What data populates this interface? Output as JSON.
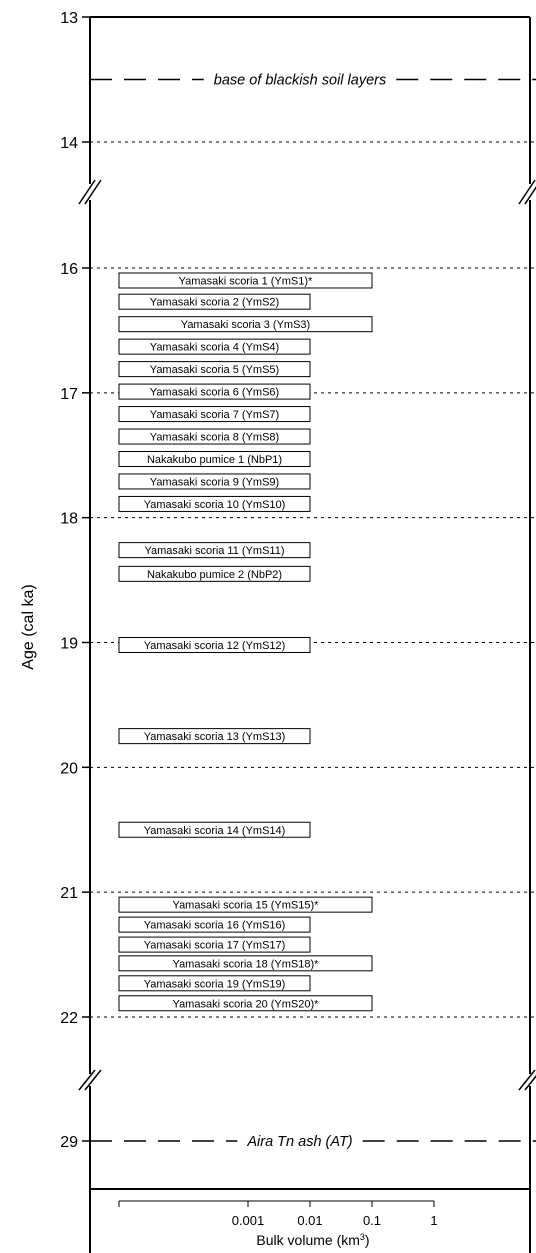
{
  "chart_data": {
    "type": "bar",
    "orientation": "horizontal-range",
    "ylabel": "Age (cal ka)",
    "xlabel_text": "Bulk volume (km",
    "xlabel_sup": "3",
    "xlabel_close": ")",
    "x_scale": "log",
    "x_ticks": [
      "0.001",
      "0.01",
      "0.1",
      "1"
    ],
    "y_ticks": [
      {
        "value": 13,
        "label": "13"
      },
      {
        "value": 14,
        "label": "14"
      },
      {
        "value": 16,
        "label": "16"
      },
      {
        "value": 17,
        "label": "17"
      },
      {
        "value": 18,
        "label": "18"
      },
      {
        "value": 19,
        "label": "19"
      },
      {
        "value": 20,
        "label": "20"
      },
      {
        "value": 21,
        "label": "21"
      },
      {
        "value": 22,
        "label": "22"
      },
      {
        "value": 29,
        "label": "29"
      }
    ],
    "axis_breaks": [
      [
        14,
        16
      ],
      [
        22,
        29
      ]
    ],
    "reference_lines": [
      {
        "age": 13.5,
        "label": "base of blackish soil layers",
        "style": "long-dash"
      },
      {
        "age": 29,
        "label": "Aira Tn ash (AT)",
        "style": "long-dash"
      }
    ],
    "gridlines": "dotted at integer ages",
    "series": [
      {
        "label": "Yamasaki scoria 1 (YmS1)*",
        "age": 16.1,
        "volume": 0.1
      },
      {
        "label": "Yamasaki scoria 2 (YmS2)",
        "age": 16.27,
        "volume": 0.01
      },
      {
        "label": "Yamasaki scoria 3 (YmS3)",
        "age": 16.45,
        "volume": 0.1
      },
      {
        "label": "Yamasaki scoria 4 (YmS4)",
        "age": 16.63,
        "volume": 0.01
      },
      {
        "label": "Yamasaki scoria 5 (YmS5)",
        "age": 16.81,
        "volume": 0.01
      },
      {
        "label": "Yamasaki scoria 6 (YmS6)",
        "age": 16.99,
        "volume": 0.01
      },
      {
        "label": "Yamasaki scoria 7 (YmS7)",
        "age": 17.17,
        "volume": 0.01
      },
      {
        "label": "Yamasaki scoria 8 (YmS8)",
        "age": 17.35,
        "volume": 0.01
      },
      {
        "label": "Nakakubo pumice 1 (NbP1)",
        "age": 17.53,
        "volume": 0.01
      },
      {
        "label": "Yamasaki scoria 9 (YmS9)",
        "age": 17.71,
        "volume": 0.01
      },
      {
        "label": "Yamasaki scoria 10 (YmS10)",
        "age": 17.89,
        "volume": 0.01
      },
      {
        "label": "Yamasaki scoria 11 (YmS11)",
        "age": 18.26,
        "volume": 0.01
      },
      {
        "label": "Nakakubo pumice 2 (NbP2)",
        "age": 18.45,
        "volume": 0.01
      },
      {
        "label": "Yamasaki scoria 12 (YmS12)",
        "age": 19.02,
        "volume": 0.01
      },
      {
        "label": "Yamasaki scoria 13 (YmS13)",
        "age": 19.75,
        "volume": 0.01
      },
      {
        "label": "Yamasaki scoria 14 (YmS14)",
        "age": 20.5,
        "volume": 0.01
      },
      {
        "label": "Yamasaki scoria 15 (YmS15)*",
        "age": 21.1,
        "volume": 0.1
      },
      {
        "label": "Yamasaki scoria 16 (YmS16)",
        "age": 21.26,
        "volume": 0.01
      },
      {
        "label": "Yamasaki scoria 17 (YmS17)",
        "age": 21.42,
        "volume": 0.01
      },
      {
        "label": "Yamasaki scoria 18 (YmS18)*",
        "age": 21.57,
        "volume": 0.1
      },
      {
        "label": "Yamasaki scoria 19 (YmS19)",
        "age": 21.73,
        "volume": 0.01
      },
      {
        "label": "Yamasaki scoria 20 (YmS20)*",
        "age": 21.89,
        "volume": 0.1
      }
    ]
  }
}
